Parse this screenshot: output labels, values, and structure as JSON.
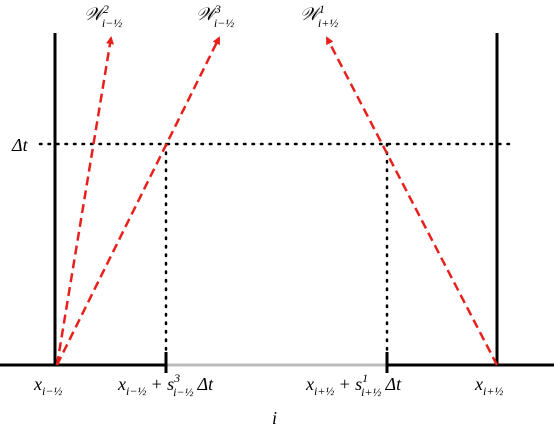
{
  "top_labels": [
    {
      "symbol": "𝒲",
      "sup": "2",
      "sub": "i−½"
    },
    {
      "symbol": "𝒲",
      "sup": "3",
      "sub": "i−½"
    },
    {
      "symbol": "𝒲",
      "sup": "1",
      "sub": "i+½"
    }
  ],
  "time_label": "Δt",
  "x_labels": [
    {
      "x": "x",
      "sub": "i−½"
    },
    {
      "x": "x",
      "sub": "i−½",
      "plus": "+ s",
      "sup": "3",
      "sub2": "i−½",
      "dt": "Δt"
    },
    {
      "x": "x",
      "sub": "i+½",
      "plus": "+ s",
      "sup": "1",
      "sub2": "i+½",
      "dt": "Δt"
    },
    {
      "x": "x",
      "sub": "i+½"
    }
  ],
  "cell_label": "i"
}
